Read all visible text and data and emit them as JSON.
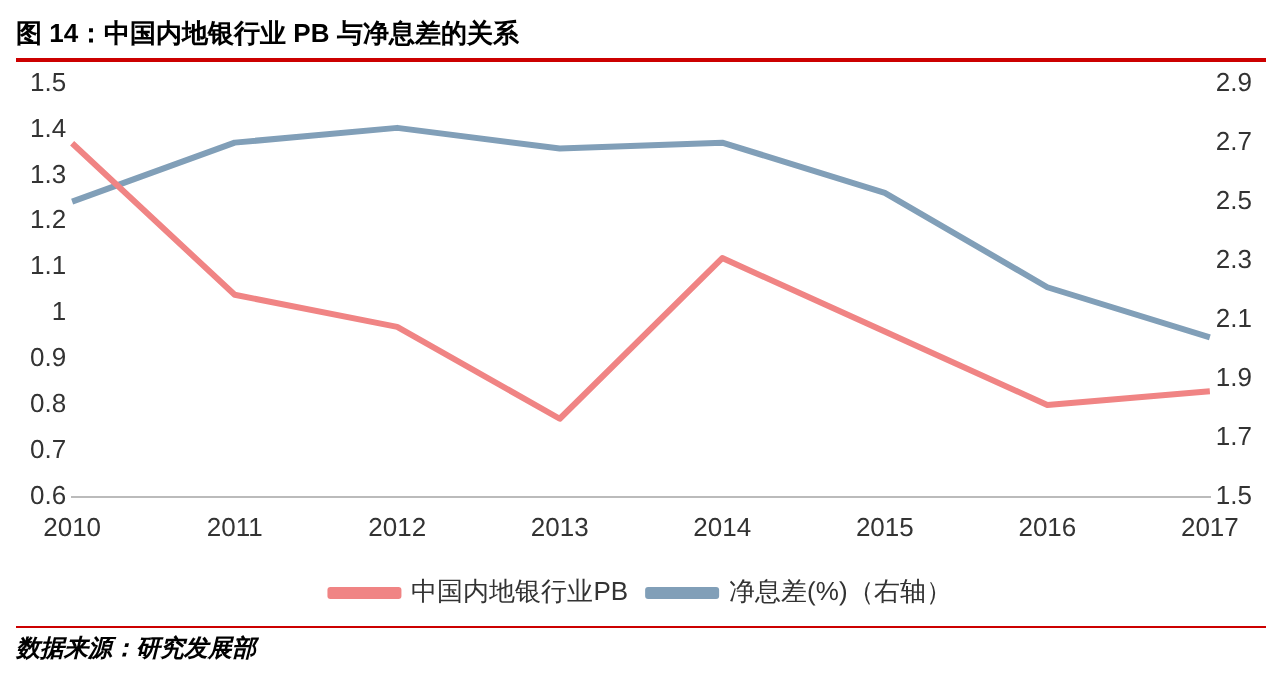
{
  "chart_data": {
    "type": "line",
    "title": "图 14：中国内地银行业 PB 与净息差的关系",
    "categories": [
      "2010",
      "2011",
      "2012",
      "2013",
      "2014",
      "2015",
      "2016",
      "2017"
    ],
    "series": [
      {
        "name": "中国内地银行业PB",
        "color": "#f08484",
        "values": [
          1.37,
          1.04,
          0.97,
          0.77,
          1.12,
          0.96,
          0.8,
          0.83
        ]
      },
      {
        "name": "净息差(%)（右轴）",
        "color": "#819fb8",
        "axis": "y2",
        "values": [
          2.5,
          2.7,
          2.75,
          2.68,
          2.7,
          2.53,
          2.21,
          2.04
        ]
      }
    ],
    "ylim": [
      0.6,
      1.5
    ],
    "yticks": [
      0.6,
      0.7,
      0.8,
      0.9,
      1,
      1.1,
      1.2,
      1.3,
      1.4,
      1.5
    ],
    "y2lim": [
      1.5,
      2.9
    ],
    "y2ticks": [
      1.5,
      1.7,
      1.9,
      2.1,
      2.3,
      2.5,
      2.7,
      2.9
    ],
    "grid": false,
    "legend": "bottom",
    "marker": "none",
    "line_style": "solid",
    "annotations": [
      "数据来源：研究发展部"
    ]
  }
}
